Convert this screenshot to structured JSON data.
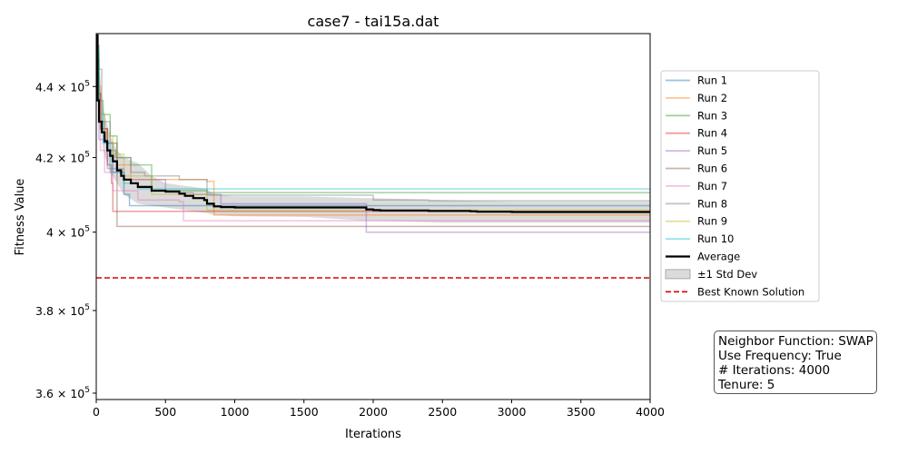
{
  "chart_data": {
    "type": "line",
    "title": "case7 - tai15a.dat",
    "xlabel": "Iterations",
    "ylabel": "Fitness Value",
    "xlim": [
      0,
      4000
    ],
    "ylim": [
      358500,
      455500
    ],
    "yscale": "log",
    "x_ticks": [
      {
        "value": 0,
        "label": "0"
      },
      {
        "value": 500,
        "label": "500"
      },
      {
        "value": 1000,
        "label": "1000"
      },
      {
        "value": 1500,
        "label": "1500"
      },
      {
        "value": 2000,
        "label": "2000"
      },
      {
        "value": 2500,
        "label": "2500"
      },
      {
        "value": 3000,
        "label": "3000"
      },
      {
        "value": 3500,
        "label": "3500"
      },
      {
        "value": 4000,
        "label": "4000"
      }
    ],
    "y_ticks": [
      {
        "value": 360000,
        "mantissa": "3.6",
        "base": "10",
        "exp": "5"
      },
      {
        "value": 380000,
        "mantissa": "3.8",
        "base": "10",
        "exp": "5"
      },
      {
        "value": 400000,
        "mantissa": "4",
        "base": "10",
        "exp": "5"
      },
      {
        "value": 420000,
        "mantissa": "4.2",
        "base": "10",
        "exp": "5"
      },
      {
        "value": 440000,
        "mantissa": "4.4",
        "base": "10",
        "exp": "5"
      }
    ],
    "grid": false,
    "legend_position": "right",
    "best_known": {
      "name": "Best Known Solution",
      "value": 388214,
      "color": "#dd0000"
    },
    "std_band": {
      "name": "±1 Std Dev",
      "color": "#b8b8b8",
      "x": [
        0,
        50,
        100,
        150,
        200,
        300,
        400,
        500,
        600,
        700,
        800,
        850,
        1000,
        1500,
        1950,
        2000,
        2500,
        3000,
        3500,
        4000
      ],
      "lower": [
        444000,
        422000,
        416000,
        413000,
        410000,
        407500,
        407000,
        406500,
        406000,
        405500,
        405000,
        404500,
        404200,
        404000,
        403000,
        403000,
        402500,
        402500,
        402500,
        402500
      ],
      "upper": [
        455000,
        434000,
        426000,
        422000,
        420000,
        418500,
        415000,
        413000,
        412500,
        412000,
        411500,
        410000,
        409500,
        409500,
        409000,
        409000,
        408500,
        408000,
        408000,
        408000
      ]
    },
    "average": {
      "name": "Average",
      "color": "#000000",
      "x": [
        0,
        10,
        20,
        40,
        60,
        80,
        100,
        120,
        150,
        180,
        200,
        250,
        300,
        400,
        500,
        600,
        640,
        700,
        780,
        800,
        850,
        900,
        1000,
        1500,
        1900,
        1950,
        2000,
        2050,
        2400,
        2700,
        2750,
        3000,
        3500,
        4000
      ],
      "y": [
        455000,
        436000,
        430000,
        427000,
        424500,
        422000,
        420500,
        419000,
        416500,
        415000,
        414000,
        413000,
        412000,
        411000,
        410800,
        410200,
        409600,
        409000,
        408500,
        407500,
        406800,
        406600,
        406500,
        406500,
        406500,
        406000,
        405800,
        405700,
        405600,
        405500,
        405400,
        405300,
        405300,
        405200
      ]
    },
    "series": [
      {
        "name": "Run 1",
        "color": "#1f77b4",
        "x": [
          0,
          20,
          60,
          120,
          200,
          240,
          400,
          1000,
          4000
        ],
        "y": [
          448000,
          430000,
          424000,
          416000,
          410000,
          407000,
          407000,
          407000,
          407000
        ]
      },
      {
        "name": "Run 2",
        "color": "#ff7f0e",
        "x": [
          0,
          30,
          80,
          150,
          250,
          800,
          850,
          4000
        ],
        "y": [
          440000,
          428000,
          424000,
          418000,
          414000,
          413500,
          404500,
          404500
        ]
      },
      {
        "name": "Run 3",
        "color": "#2ca02c",
        "x": [
          0,
          20,
          50,
          100,
          150,
          250,
          400,
          800,
          4000
        ],
        "y": [
          452000,
          436000,
          432000,
          426000,
          420000,
          418000,
          411000,
          410500,
          410500
        ]
      },
      {
        "name": "Run 4",
        "color": "#d62728",
        "x": [
          0,
          30,
          80,
          110,
          120,
          4000
        ],
        "y": [
          438000,
          428000,
          418000,
          413000,
          405500,
          405500
        ]
      },
      {
        "name": "Run 5",
        "color": "#9467bd",
        "x": [
          0,
          20,
          80,
          200,
          500,
          700,
          900,
          1950,
          4000
        ],
        "y": [
          442000,
          425000,
          417000,
          414000,
          410500,
          410000,
          407500,
          400000,
          400000
        ]
      },
      {
        "name": "Run 6",
        "color": "#8c564b",
        "x": [
          0,
          30,
          80,
          140,
          150,
          4000
        ],
        "y": [
          438000,
          428000,
          422000,
          420000,
          401500,
          401500
        ]
      },
      {
        "name": "Run 7",
        "color": "#e377c2",
        "x": [
          0,
          30,
          60,
          120,
          300,
          600,
          630,
          4000
        ],
        "y": [
          436000,
          422000,
          416000,
          411000,
          408500,
          408000,
          403000,
          403000
        ]
      },
      {
        "name": "Run 8",
        "color": "#7f7f7f",
        "x": [
          0,
          40,
          100,
          150,
          250,
          350,
          600,
          800,
          1950,
          2000,
          2400,
          4000
        ],
        "y": [
          445000,
          430000,
          424000,
          420000,
          416000,
          415000,
          414000,
          409800,
          409800,
          408500,
          408300,
          408000
        ]
      },
      {
        "name": "Run 9",
        "color": "#bcbd22",
        "x": [
          0,
          20,
          60,
          120,
          200,
          400,
          800,
          4000
        ],
        "y": [
          448000,
          432000,
          426000,
          421000,
          415000,
          410000,
          405800,
          405800
        ]
      },
      {
        "name": "Run 10",
        "color": "#17becf",
        "x": [
          0,
          20,
          50,
          100,
          200,
          300,
          600,
          4000
        ],
        "y": [
          450000,
          432000,
          424000,
          416000,
          413000,
          411500,
          411500,
          411500
        ]
      }
    ]
  },
  "info_box": {
    "lines": [
      "Neighbor Function: SWAP",
      "Use Frequency: True",
      "# Iterations: 4000",
      "Tenure: 5"
    ]
  }
}
